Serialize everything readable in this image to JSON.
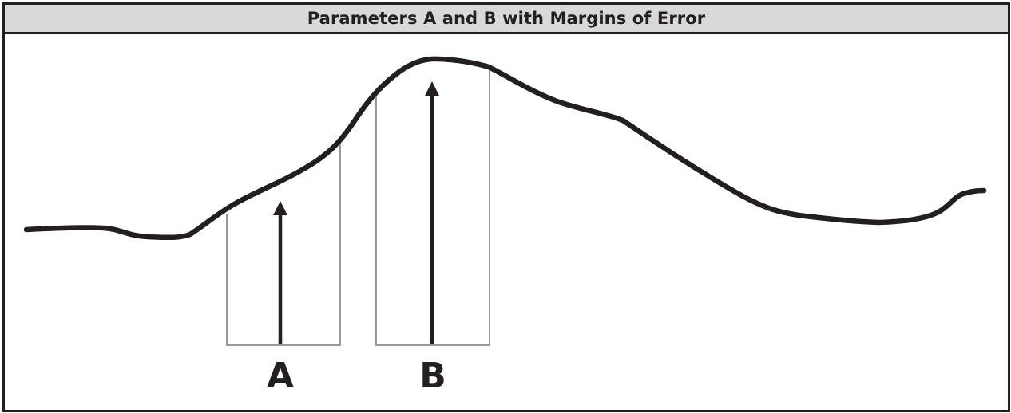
{
  "title": "Parameters A and B with Margins of Error",
  "parameters": [
    {
      "label": "A"
    },
    {
      "label": "B"
    }
  ],
  "colors": {
    "stroke": "#231f20",
    "header_bg": "#d9d9d9",
    "box_stroke": "#8c8c8c"
  }
}
